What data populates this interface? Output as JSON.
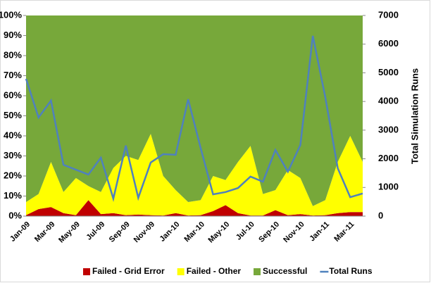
{
  "chart_data": {
    "type": "area",
    "y2_label": "Total Simulation Runs",
    "categories": [
      "Jan-09",
      null,
      "Mar-09",
      null,
      "May-09",
      null,
      "Jul-09",
      null,
      "Sep-09",
      null,
      "Nov-09",
      null,
      "Jan-10",
      null,
      "Mar-10",
      null,
      "May-10",
      null,
      "Jul-10",
      null,
      "Sep-10",
      null,
      "Nov-10",
      null,
      "Jan-11",
      null,
      "Mar-11",
      null
    ],
    "series": [
      {
        "name": "Failed - Grid Error",
        "color": "#c00000",
        "values": [
          0.5,
          3.5,
          4.5,
          1.5,
          0.5,
          8,
          1,
          1.5,
          0.5,
          0.8,
          0.5,
          0.3,
          1.5,
          0.3,
          0.5,
          2.5,
          5.5,
          1.5,
          0.3,
          0.3,
          3,
          0.5,
          1,
          0.3,
          0.5,
          1.5,
          2,
          2
        ]
      },
      {
        "name": "Failed - Other",
        "color": "#ffff00",
        "values": [
          6.5,
          7.5,
          22.5,
          10.5,
          18.5,
          7,
          11,
          22.5,
          29.5,
          27.2,
          40.5,
          19.7,
          11.5,
          6.7,
          7.5,
          17.5,
          12.5,
          25.5,
          34.7,
          10.7,
          10,
          22.5,
          18,
          4.7,
          7.5,
          25.5,
          38,
          25
        ]
      },
      {
        "name": "Successful",
        "color": "#77a83a",
        "values": [
          93,
          89,
          73,
          88,
          81,
          85,
          88,
          76,
          70,
          72,
          59,
          80,
          87,
          93,
          92,
          80,
          82,
          73,
          65,
          89,
          87,
          77,
          81,
          95,
          92,
          73,
          60,
          73
        ]
      },
      {
        "name": "Total Runs",
        "color": "#4f81bd",
        "type": "line",
        "axis": "y2",
        "values": [
          4790,
          3440,
          4030,
          1790,
          1620,
          1450,
          2040,
          610,
          2460,
          640,
          1870,
          2160,
          2140,
          4080,
          2380,
          760,
          840,
          980,
          1380,
          1200,
          2310,
          1550,
          2480,
          6290,
          4150,
          1670,
          660,
          790
        ]
      }
    ],
    "ylim": [
      0,
      100
    ],
    "yticks": [
      {
        "value": 0,
        "label": "0%"
      },
      {
        "value": 10,
        "label": "10%"
      },
      {
        "value": 20,
        "label": "20%"
      },
      {
        "value": 30,
        "label": "30%"
      },
      {
        "value": 40,
        "label": "40%"
      },
      {
        "value": 50,
        "label": "50%"
      },
      {
        "value": 60,
        "label": "60%"
      },
      {
        "value": 70,
        "label": "70%"
      },
      {
        "value": 80,
        "label": "80%"
      },
      {
        "value": 90,
        "label": "90%"
      },
      {
        "value": 100,
        "label": "100%"
      }
    ],
    "y2lim": [
      0,
      7000
    ],
    "y2ticks": [
      0,
      1000,
      2000,
      3000,
      4000,
      5000,
      6000,
      7000
    ],
    "legend": "bottom"
  }
}
